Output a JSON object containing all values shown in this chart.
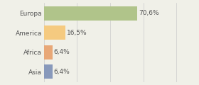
{
  "categories": [
    "Europa",
    "America",
    "Africa",
    "Asia"
  ],
  "values": [
    70.6,
    16.5,
    6.4,
    6.4
  ],
  "labels": [
    "70,6%",
    "16,5%",
    "6,4%",
    "6,4%"
  ],
  "bar_colors": [
    "#b0c48a",
    "#f5ca80",
    "#e8a878",
    "#8899bb"
  ],
  "background_color": "#f0f0e8",
  "xlim": [
    0,
    105
  ],
  "bar_height": 0.72,
  "label_fontsize": 6.5,
  "tick_fontsize": 6.5,
  "grid_color": "#cccccc",
  "grid_positions": [
    0,
    25,
    50,
    75,
    100
  ],
  "text_color": "#555555"
}
